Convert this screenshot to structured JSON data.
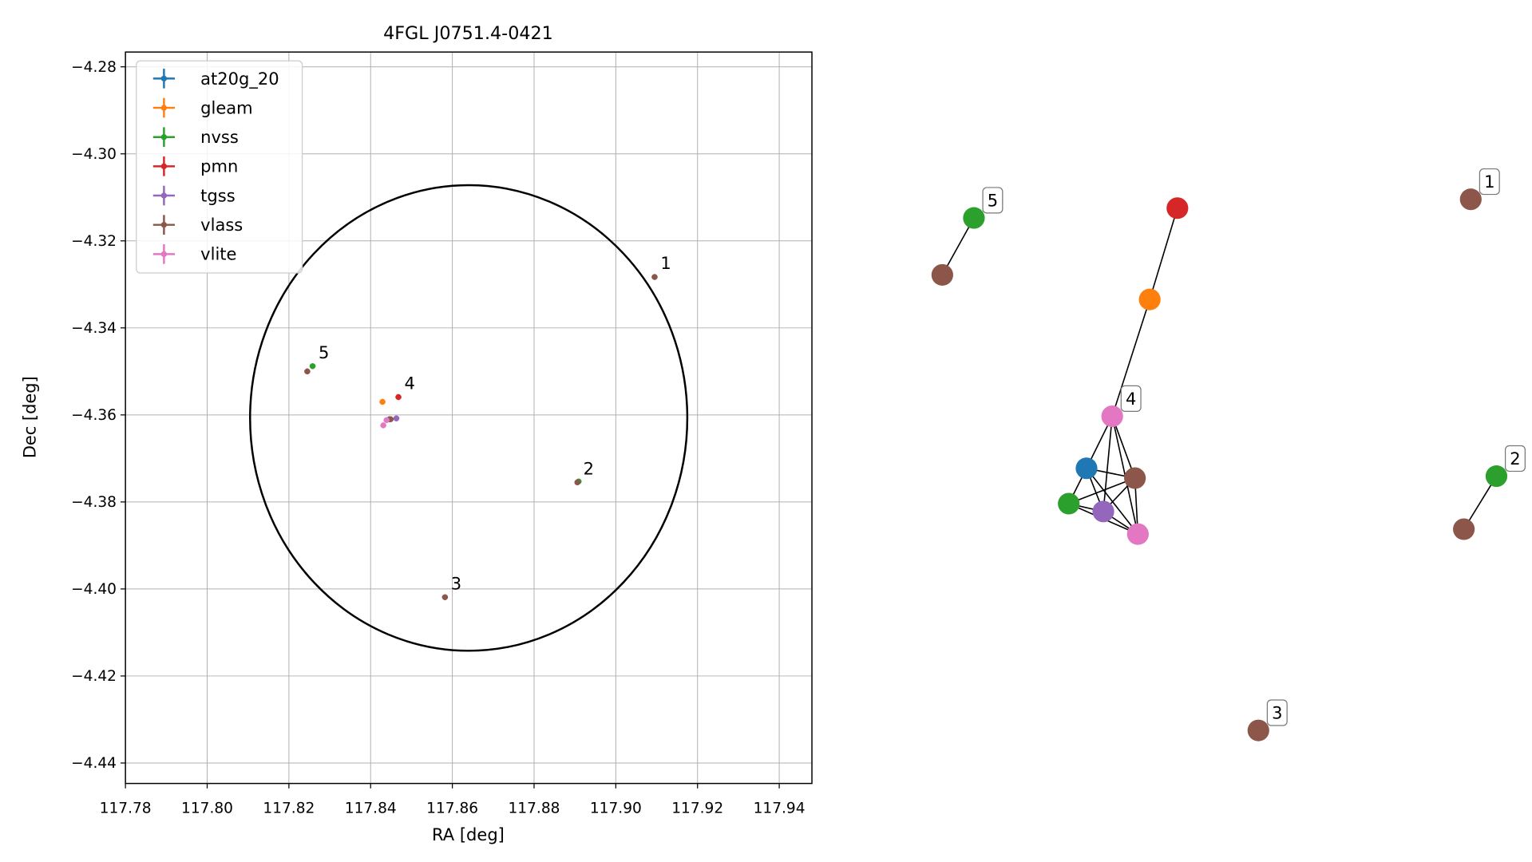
{
  "chart_data": [
    {
      "type": "scatter",
      "title": "4FGL J0751.4-0421",
      "xlabel": "RA [deg]",
      "ylabel": "Dec [deg]",
      "xlim": [
        117.78,
        117.948
      ],
      "ylim": [
        -4.4447,
        -4.2766
      ],
      "xticks": [
        117.78,
        {
          "value": 117.8,
          "label": "117.80"
        },
        117.82,
        117.84,
        117.86,
        117.88,
        {
          "value": 117.9,
          "label": "117.90"
        },
        117.92,
        117.94
      ],
      "yticks": [
        {
          "value": -4.28,
          "label": "−4.28"
        },
        {
          "value": -4.3,
          "label": "−4.30"
        },
        {
          "value": -4.32,
          "label": "−4.32"
        },
        {
          "value": -4.34,
          "label": "−4.34"
        },
        {
          "value": -4.36,
          "label": "−4.36"
        },
        {
          "value": -4.38,
          "label": "−4.38"
        },
        {
          "value": -4.4,
          "label": "−4.40"
        },
        {
          "value": -4.42,
          "label": "−4.42"
        },
        {
          "value": -4.44,
          "label": "−4.44"
        }
      ],
      "grid": true,
      "legend": "upper left",
      "circle": {
        "center": [
          117.864,
          -4.3607
        ],
        "radius": 0.0535
      },
      "series": [
        {
          "name": "at20g_20",
          "color": "#1f77b4",
          "x": [
            117.8446
          ],
          "y": [
            -4.361
          ]
        },
        {
          "name": "gleam",
          "color": "#ff7f0e",
          "x": [
            117.8429
          ],
          "y": [
            -4.357
          ]
        },
        {
          "name": "nvss",
          "color": "#2ca02c",
          "x": [
            117.8258,
            117.8909
          ],
          "y": [
            -4.3488,
            -4.3753
          ]
        },
        {
          "name": "pmn",
          "color": "#d62728",
          "x": [
            117.8468
          ],
          "y": [
            -4.3559
          ]
        },
        {
          "name": "tgss",
          "color": "#9467bd",
          "x": [
            117.8463
          ],
          "y": [
            -4.3608
          ]
        },
        {
          "name": "vlass",
          "color": "#8c564b",
          "x": [
            117.9095,
            117.8906,
            117.8582,
            117.8245,
            117.8449
          ],
          "y": [
            -4.3283,
            -4.3755,
            -4.4019,
            -4.35,
            -4.361
          ]
        },
        {
          "name": "vlite",
          "color": "#e377c2",
          "x": [
            117.8439,
            117.8431
          ],
          "y": [
            -4.3612,
            -4.3624
          ]
        }
      ],
      "annotations": [
        {
          "text": "1",
          "x": 117.9095,
          "y": -4.3283
        },
        {
          "text": "2",
          "x": 117.8906,
          "y": -4.3755
        },
        {
          "text": "3",
          "x": 117.8582,
          "y": -4.4019
        },
        {
          "text": "4",
          "x": 117.8468,
          "y": -4.3559
        },
        {
          "text": "5",
          "x": 117.8258,
          "y": -4.3488
        }
      ]
    },
    {
      "type": "network",
      "nodes": [
        {
          "color": "#2ca02c",
          "label": "5"
        },
        {
          "color": "#8c564b"
        },
        {
          "color": "#d62728"
        },
        {
          "color": "#ff7f0e"
        },
        {
          "color": "#e377c2",
          "label": "4"
        },
        {
          "color": "#1f77b4"
        },
        {
          "color": "#8c564b"
        },
        {
          "color": "#2ca02c"
        },
        {
          "color": "#9467bd"
        },
        {
          "color": "#e377c2"
        },
        {
          "color": "#8c564b",
          "label": "1"
        },
        {
          "color": "#2ca02c",
          "label": "2"
        },
        {
          "color": "#8c564b"
        },
        {
          "color": "#8c564b",
          "label": "3"
        }
      ],
      "edges": [
        [
          0,
          1
        ],
        [
          2,
          3
        ],
        [
          3,
          4
        ],
        [
          4,
          5
        ],
        [
          4,
          6
        ],
        [
          4,
          8
        ],
        [
          4,
          9
        ],
        [
          5,
          6
        ],
        [
          5,
          7
        ],
        [
          5,
          8
        ],
        [
          5,
          9
        ],
        [
          6,
          7
        ],
        [
          6,
          8
        ],
        [
          6,
          9
        ],
        [
          7,
          8
        ],
        [
          7,
          9
        ],
        [
          8,
          9
        ],
        [
          11,
          12
        ]
      ]
    }
  ]
}
